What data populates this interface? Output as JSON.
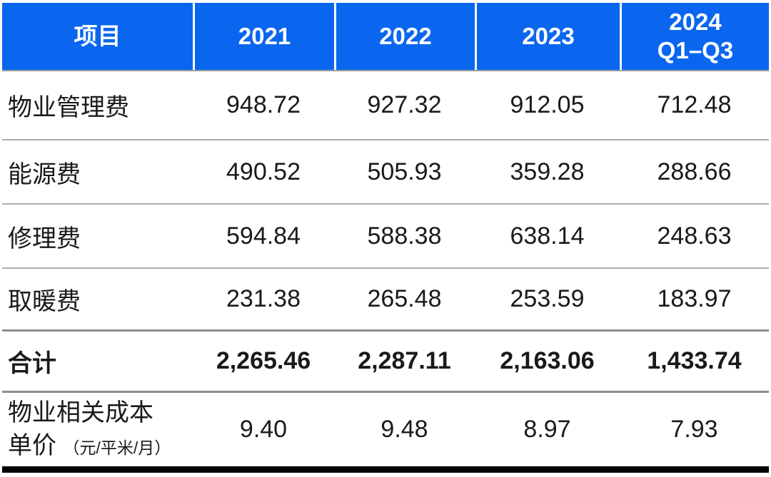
{
  "table": {
    "header": {
      "item": "项目",
      "columns": [
        "2021",
        "2022",
        "2023",
        "2024\nQ1–Q3"
      ]
    },
    "rows": [
      {
        "label": "物业管理费",
        "values": [
          "948.72",
          "927.32",
          "912.05",
          "712.48"
        ]
      },
      {
        "label": "能源费",
        "values": [
          "490.52",
          "505.93",
          "359.28",
          "288.66"
        ]
      },
      {
        "label": "修理费",
        "values": [
          "594.84",
          "588.38",
          "638.14",
          "248.63"
        ]
      },
      {
        "label": "取暖费",
        "values": [
          "231.38",
          "265.48",
          "253.59",
          "183.97"
        ]
      },
      {
        "label": "合计",
        "values": [
          "2,265.46",
          "2,287.11",
          "2,163.06",
          "1,433.74"
        ]
      },
      {
        "label_line1": "物业相关成本",
        "label_line2": "单价",
        "unit": "（元/平米/月）",
        "values": [
          "9.40",
          "9.48",
          "8.97",
          "7.93"
        ]
      }
    ],
    "colors": {
      "header_bg": "#0A66EF",
      "header_text": "#FFFFFF",
      "body_text": "#1A1A1A",
      "separator": "#ACACAC",
      "strong_separator": "#8C8C8C",
      "bottom_bar": "#000000"
    }
  },
  "chart_data": {
    "type": "table",
    "title": "",
    "categories": [
      "2021",
      "2022",
      "2023",
      "2024 Q1–Q3"
    ],
    "series": [
      {
        "name": "物业管理费",
        "values": [
          948.72,
          927.32,
          912.05,
          712.48
        ]
      },
      {
        "name": "能源费",
        "values": [
          490.52,
          505.93,
          359.28,
          288.66
        ]
      },
      {
        "name": "修理费",
        "values": [
          594.84,
          588.38,
          638.14,
          248.63
        ]
      },
      {
        "name": "取暖费",
        "values": [
          231.38,
          265.48,
          253.59,
          183.97
        ]
      },
      {
        "name": "合计",
        "values": [
          2265.46,
          2287.11,
          2163.06,
          1433.74
        ]
      },
      {
        "name": "物业相关成本单价（元/平米/月）",
        "values": [
          9.4,
          9.48,
          8.97,
          7.93
        ]
      }
    ]
  }
}
